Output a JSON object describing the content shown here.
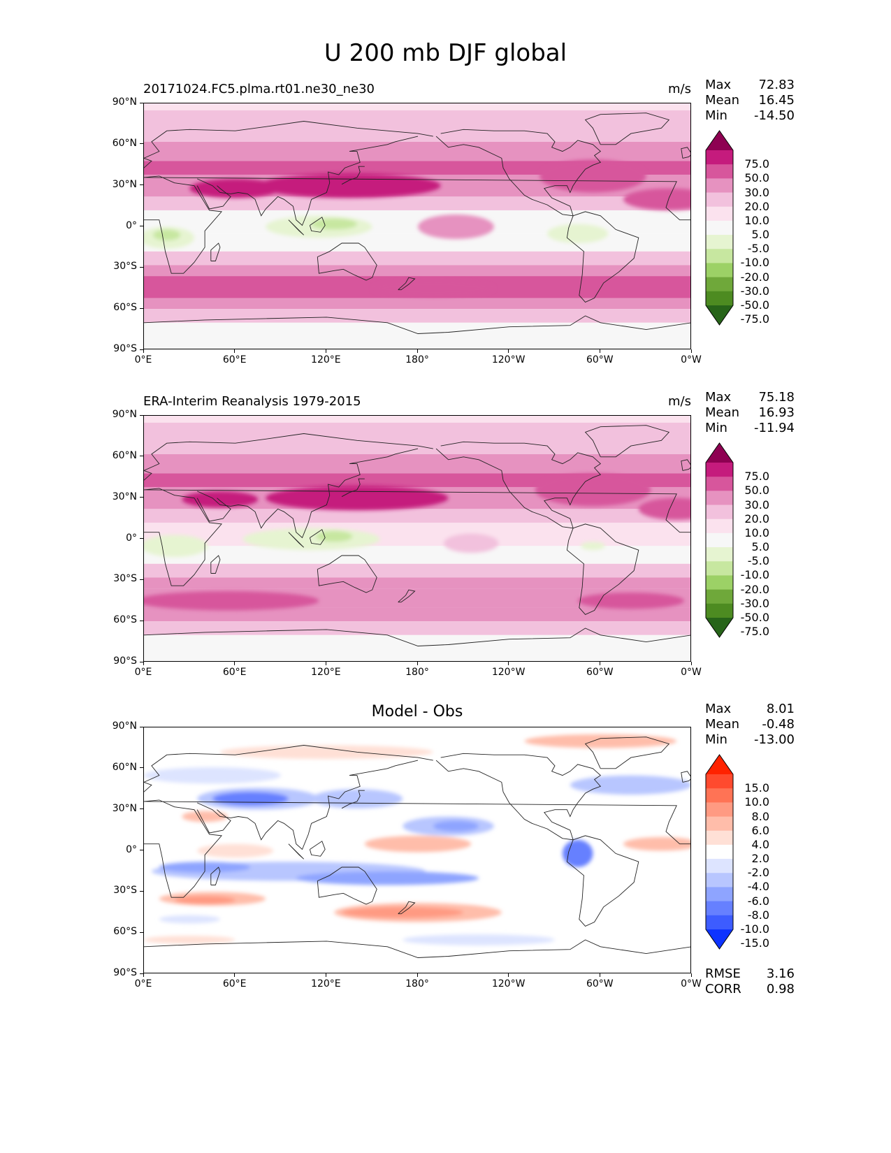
{
  "figure": {
    "title": "U 200 mb DJF global"
  },
  "chart_data": [
    {
      "type": "heatmap",
      "id": "model",
      "title_left": "20171024.FC5.plma.rt01.ne30_ne30",
      "title_right": "m/s",
      "title_center": "",
      "stats": [
        {
          "label": "Max",
          "value": "72.83"
        },
        {
          "label": "Mean",
          "value": "16.45"
        },
        {
          "label": "Min",
          "value": "-14.50"
        }
      ],
      "xticks": [
        "0°E",
        "60°E",
        "120°E",
        "180°",
        "120°W",
        "60°W",
        "0°W"
      ],
      "yticks": [
        "90°N",
        "60°N",
        "30°N",
        "0°",
        "30°S",
        "60°S",
        "90°S"
      ],
      "xlim": [
        0,
        360
      ],
      "ylim": [
        -90,
        90
      ],
      "colorbar_levels": [
        "75.0",
        "50.0",
        "30.0",
        "20.0",
        "10.0",
        "5.0",
        "-5.0",
        "-10.0",
        "-20.0",
        "-30.0",
        "-50.0",
        "-75.0"
      ],
      "colorbar_colors": [
        "#8e0152",
        "#c51b7d",
        "#d7569c",
        "#e692c0",
        "#f2c1dd",
        "#fbe2ee",
        "#f7f7f7",
        "#e6f4d1",
        "#c7e7a0",
        "#9cd166",
        "#6fa83a",
        "#4d8b21",
        "#276419"
      ],
      "bands": [
        {
          "lat": [
            85,
            90
          ],
          "color": "#fbe2ee"
        },
        {
          "lat": [
            62,
            85
          ],
          "color": "#f2c1dd"
        },
        {
          "lat": [
            48,
            62
          ],
          "color": "#e692c0"
        },
        {
          "lat": [
            38,
            48
          ],
          "color": "#d7569c"
        },
        {
          "lat": [
            22,
            38
          ],
          "color": "#e692c0"
        },
        {
          "lat": [
            12,
            22
          ],
          "color": "#f2c1dd"
        },
        {
          "lat": [
            -5,
            12
          ],
          "color": "#f7f7f7"
        },
        {
          "lat": [
            -18,
            -5
          ],
          "color": "#f7f7f7"
        },
        {
          "lat": [
            -28,
            -18
          ],
          "color": "#f2c1dd"
        },
        {
          "lat": [
            -36,
            -28
          ],
          "color": "#e692c0"
        },
        {
          "lat": [
            -52,
            -36
          ],
          "color": "#d7569c"
        },
        {
          "lat": [
            -60,
            -52
          ],
          "color": "#e692c0"
        },
        {
          "lat": [
            -70,
            -60
          ],
          "color": "#f2c1dd"
        },
        {
          "lat": [
            -90,
            -70
          ],
          "color": "#f7f7f7"
        }
      ],
      "blobs": [
        {
          "lon": 135,
          "lat": 30,
          "rlon": 60,
          "rlat": 9,
          "color": "#c51b7d"
        },
        {
          "lon": 60,
          "lat": 28,
          "rlon": 30,
          "rlat": 7,
          "color": "#c51b7d"
        },
        {
          "lon": 295,
          "lat": 37,
          "rlon": 35,
          "rlat": 12,
          "color": "#d7569c"
        },
        {
          "lon": 345,
          "lat": 20,
          "rlon": 30,
          "rlat": 8,
          "color": "#d7569c"
        },
        {
          "lon": 205,
          "lat": 0,
          "rlon": 25,
          "rlat": 9,
          "color": "#e692c0"
        },
        {
          "lon": 15,
          "lat": -8,
          "rlon": 18,
          "rlat": 8,
          "color": "#e6f4d1"
        },
        {
          "lon": 115,
          "lat": 0,
          "rlon": 35,
          "rlat": 8,
          "color": "#e6f4d1"
        },
        {
          "lon": 125,
          "lat": 2,
          "rlon": 15,
          "rlat": 4,
          "color": "#c7e7a0"
        },
        {
          "lon": 15,
          "lat": -6,
          "rlon": 9,
          "rlat": 4,
          "color": "#c7e7a0"
        },
        {
          "lon": 285,
          "lat": -5,
          "rlon": 20,
          "rlat": 7,
          "color": "#e6f4d1"
        },
        {
          "lon": 190,
          "lat": -45,
          "rlon": 40,
          "rlat": 6,
          "color": "#d7569c"
        }
      ]
    },
    {
      "type": "heatmap",
      "id": "obs",
      "title_left": "ERA-Interim Reanalysis 1979-2015",
      "title_right": "m/s",
      "title_center": "",
      "stats": [
        {
          "label": "Max",
          "value": "75.18"
        },
        {
          "label": "Mean",
          "value": "16.93"
        },
        {
          "label": "Min",
          "value": "-11.94"
        }
      ],
      "xticks": [
        "0°E",
        "60°E",
        "120°E",
        "180°",
        "120°W",
        "60°W",
        "0°W"
      ],
      "yticks": [
        "90°N",
        "60°N",
        "30°N",
        "0°",
        "30°S",
        "60°S",
        "90°S"
      ],
      "xlim": [
        0,
        360
      ],
      "ylim": [
        -90,
        90
      ],
      "colorbar_levels": [
        "75.0",
        "50.0",
        "30.0",
        "20.0",
        "10.0",
        "5.0",
        "-5.0",
        "-10.0",
        "-20.0",
        "-30.0",
        "-50.0",
        "-75.0"
      ],
      "colorbar_colors": [
        "#8e0152",
        "#c51b7d",
        "#d7569c",
        "#e692c0",
        "#f2c1dd",
        "#fbe2ee",
        "#f7f7f7",
        "#e6f4d1",
        "#c7e7a0",
        "#9cd166",
        "#6fa83a",
        "#4d8b21",
        "#276419"
      ],
      "bands": [
        {
          "lat": [
            85,
            90
          ],
          "color": "#fbe2ee"
        },
        {
          "lat": [
            62,
            85
          ],
          "color": "#f2c1dd"
        },
        {
          "lat": [
            48,
            62
          ],
          "color": "#e692c0"
        },
        {
          "lat": [
            38,
            48
          ],
          "color": "#d7569c"
        },
        {
          "lat": [
            22,
            38
          ],
          "color": "#e692c0"
        },
        {
          "lat": [
            12,
            22
          ],
          "color": "#f2c1dd"
        },
        {
          "lat": [
            -5,
            12
          ],
          "color": "#fbe2ee"
        },
        {
          "lat": [
            -18,
            -5
          ],
          "color": "#f7f7f7"
        },
        {
          "lat": [
            -28,
            -18
          ],
          "color": "#f2c1dd"
        },
        {
          "lat": [
            -36,
            -28
          ],
          "color": "#e692c0"
        },
        {
          "lat": [
            -50,
            -36
          ],
          "color": "#e692c0"
        },
        {
          "lat": [
            -60,
            -50
          ],
          "color": "#e692c0"
        },
        {
          "lat": [
            -70,
            -60
          ],
          "color": "#f2c1dd"
        },
        {
          "lat": [
            -90,
            -70
          ],
          "color": "#f7f7f7"
        }
      ],
      "blobs": [
        {
          "lon": 140,
          "lat": 30,
          "rlon": 60,
          "rlat": 9,
          "color": "#c51b7d"
        },
        {
          "lon": 50,
          "lat": 29,
          "rlon": 25,
          "rlat": 6,
          "color": "#c51b7d"
        },
        {
          "lon": 295,
          "lat": 36,
          "rlon": 38,
          "rlat": 12,
          "color": "#d7569c"
        },
        {
          "lon": 350,
          "lat": 22,
          "rlon": 25,
          "rlat": 8,
          "color": "#d7569c"
        },
        {
          "lon": 55,
          "lat": -45,
          "rlon": 60,
          "rlat": 7,
          "color": "#d7569c"
        },
        {
          "lon": 320,
          "lat": -45,
          "rlon": 35,
          "rlat": 6,
          "color": "#d7569c"
        },
        {
          "lon": 215,
          "lat": -3,
          "rlon": 18,
          "rlat": 7,
          "color": "#f2c1dd"
        },
        {
          "lon": 20,
          "lat": -5,
          "rlon": 22,
          "rlat": 8,
          "color": "#e6f4d1"
        },
        {
          "lon": 110,
          "lat": 0,
          "rlon": 45,
          "rlat": 8,
          "color": "#e6f4d1"
        },
        {
          "lon": 125,
          "lat": 2,
          "rlon": 12,
          "rlat": 4,
          "color": "#c7e7a0"
        },
        {
          "lon": 295,
          "lat": -5,
          "rlon": 8,
          "rlat": 3,
          "color": "#e6f4d1"
        }
      ]
    },
    {
      "type": "heatmap",
      "id": "diff",
      "title_left": "",
      "title_right": "",
      "title_center": "Model - Obs",
      "stats": [
        {
          "label": "Max",
          "value": "8.01"
        },
        {
          "label": "Mean",
          "value": "-0.48"
        },
        {
          "label": "Min",
          "value": "-13.00"
        }
      ],
      "extra_stats": [
        {
          "label": "RMSE",
          "value": "3.16"
        },
        {
          "label": "CORR",
          "value": "0.98"
        }
      ],
      "xticks": [
        "0°E",
        "60°E",
        "120°E",
        "180°",
        "120°W",
        "60°W",
        "0°W"
      ],
      "yticks": [
        "90°N",
        "60°N",
        "30°N",
        "0°",
        "30°S",
        "60°S",
        "90°S"
      ],
      "xlim": [
        0,
        360
      ],
      "ylim": [
        -90,
        90
      ],
      "colorbar_levels": [
        "15.0",
        "10.0",
        "8.0",
        "6.0",
        "4.0",
        "2.0",
        "-2.0",
        "-4.0",
        "-6.0",
        "-8.0",
        "-10.0",
        "-15.0"
      ],
      "colorbar_colors": [
        "#ff2200",
        "#ff4a2e",
        "#ff7355",
        "#ff9a82",
        "#ffbdaa",
        "#ffe0d6",
        "#ffffff",
        "#dde4ff",
        "#b8c6ff",
        "#8ea4ff",
        "#6680ff",
        "#3d5cff",
        "#0d33ff"
      ],
      "bands": [
        {
          "lat": [
            -90,
            90
          ],
          "color": "#ffffff"
        }
      ],
      "blobs": [
        {
          "lon": 75,
          "lat": 38,
          "rlon": 40,
          "rlat": 8,
          "color": "#b8c6ff"
        },
        {
          "lon": 70,
          "lat": 38,
          "rlon": 25,
          "rlat": 5,
          "color": "#6680ff"
        },
        {
          "lon": 140,
          "lat": 38,
          "rlon": 30,
          "rlat": 7,
          "color": "#b8c6ff"
        },
        {
          "lon": 45,
          "lat": 55,
          "rlon": 45,
          "rlat": 6,
          "color": "#dde4ff"
        },
        {
          "lon": 200,
          "lat": 18,
          "rlon": 30,
          "rlat": 7,
          "color": "#b8c6ff"
        },
        {
          "lon": 205,
          "lat": 18,
          "rlon": 15,
          "rlat": 4,
          "color": "#8ea4ff"
        },
        {
          "lon": 285,
          "lat": -2,
          "rlon": 10,
          "rlat": 10,
          "color": "#6680ff"
        },
        {
          "lon": 320,
          "lat": 48,
          "rlon": 40,
          "rlat": 7,
          "color": "#b8c6ff"
        },
        {
          "lon": 95,
          "lat": -15,
          "rlon": 90,
          "rlat": 7,
          "color": "#b8c6ff"
        },
        {
          "lon": 40,
          "lat": -12,
          "rlon": 30,
          "rlat": 4,
          "color": "#8ea4ff"
        },
        {
          "lon": 160,
          "lat": -20,
          "rlon": 60,
          "rlat": 5,
          "color": "#8ea4ff"
        },
        {
          "lon": 180,
          "lat": -45,
          "rlon": 55,
          "rlat": 7,
          "color": "#ffbdaa"
        },
        {
          "lon": 170,
          "lat": -45,
          "rlon": 40,
          "rlat": 4,
          "color": "#ff9a82"
        },
        {
          "lon": 45,
          "lat": -35,
          "rlon": 35,
          "rlat": 5,
          "color": "#ffbdaa"
        },
        {
          "lon": 40,
          "lat": -36,
          "rlon": 20,
          "rlat": 3,
          "color": "#ff9a82"
        },
        {
          "lon": 180,
          "lat": 5,
          "rlon": 35,
          "rlat": 6,
          "color": "#ffbdaa"
        },
        {
          "lon": 60,
          "lat": 0,
          "rlon": 25,
          "rlat": 5,
          "color": "#ffe0d6"
        },
        {
          "lon": 340,
          "lat": 5,
          "rlon": 25,
          "rlat": 5,
          "color": "#ffbdaa"
        },
        {
          "lon": 120,
          "lat": 72,
          "rlon": 70,
          "rlat": 5,
          "color": "#ffe0d6"
        },
        {
          "lon": 300,
          "lat": 80,
          "rlon": 50,
          "rlat": 5,
          "color": "#ffbdaa"
        },
        {
          "lon": 40,
          "lat": 25,
          "rlon": 15,
          "rlat": 4,
          "color": "#ffbdaa"
        },
        {
          "lon": 220,
          "lat": -65,
          "rlon": 50,
          "rlat": 4,
          "color": "#dde4ff"
        },
        {
          "lon": 30,
          "lat": -65,
          "rlon": 30,
          "rlat": 3,
          "color": "#ffe0d6"
        },
        {
          "lon": 30,
          "lat": -50,
          "rlon": 20,
          "rlat": 3,
          "color": "#dde4ff"
        }
      ]
    }
  ]
}
